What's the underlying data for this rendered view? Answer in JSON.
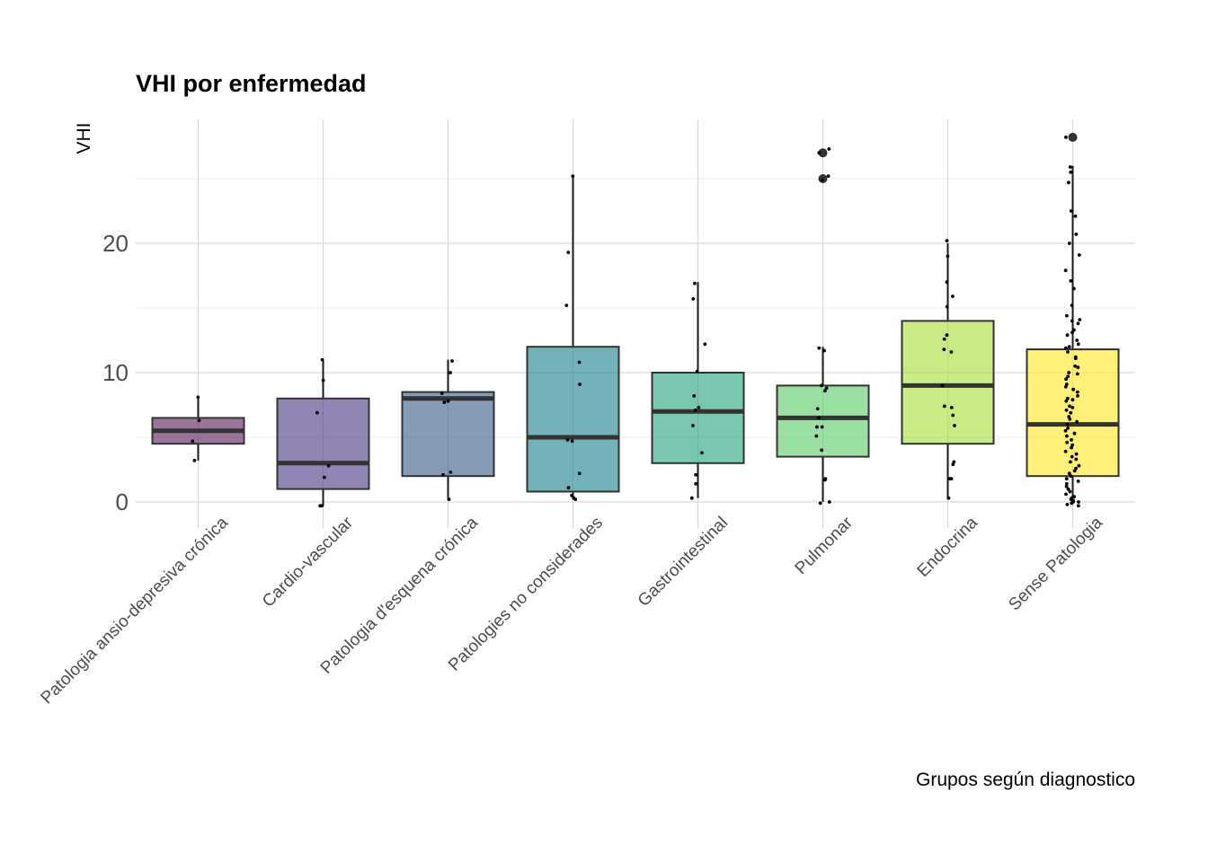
{
  "chart_data": {
    "type": "boxplot",
    "title": "VHI por enfermedad",
    "xlabel": "Grupos según diagnostico",
    "ylabel": "VHI",
    "ylim": [
      -1.9,
      29.5
    ],
    "yticks": [
      0,
      10,
      20
    ],
    "grid": true,
    "legend": "none",
    "categories": [
      "Patologia ansio-depresiva crónica",
      "Cardio-vascular",
      "Patologia d'esquena crónica",
      "Patologies no considerades",
      "Gastrointestinal",
      "Pulmonar",
      "Endocrina",
      "Sense Patologia"
    ],
    "colors": [
      "#5b1f5e",
      "#4f3985",
      "#3d5d8e",
      "#21818e",
      "#27a381",
      "#5fcb69",
      "#a8df3a",
      "#fde725"
    ],
    "boxes": [
      {
        "q1": 4.5,
        "median": 5.5,
        "q3": 6.5,
        "whisker_low": 3.2,
        "whisker_high": 8,
        "outliers": []
      },
      {
        "q1": 1,
        "median": 3,
        "q3": 8,
        "whisker_low": -0.3,
        "whisker_high": 11,
        "outliers": []
      },
      {
        "q1": 2,
        "median": 8,
        "q3": 8.5,
        "whisker_low": 0.2,
        "whisker_high": 11,
        "outliers": []
      },
      {
        "q1": 0.8,
        "median": 5,
        "q3": 12,
        "whisker_low": 0.2,
        "whisker_high": 25.2,
        "outliers": []
      },
      {
        "q1": 3,
        "median": 7,
        "q3": 10,
        "whisker_low": 0.3,
        "whisker_high": 17,
        "outliers": []
      },
      {
        "q1": 3.5,
        "median": 6.5,
        "q3": 9,
        "whisker_low": 0,
        "whisker_high": 12,
        "outliers": [
          25,
          27
        ]
      },
      {
        "q1": 4.5,
        "median": 9,
        "q3": 14,
        "whisker_low": 0.3,
        "whisker_high": 20,
        "outliers": []
      },
      {
        "q1": 2,
        "median": 6,
        "q3": 11.8,
        "whisker_low": 0,
        "whisker_high": 26,
        "outliers": [
          28.2
        ]
      }
    ],
    "points": [
      [
        8.1,
        6.3,
        4.7,
        3.2
      ],
      [
        11,
        9.4,
        6.9,
        2.8,
        1.9,
        -0.3,
        -0.3
      ],
      [
        10.9,
        10,
        8.4,
        7.8,
        7.7,
        2.3,
        2.1,
        0.2
      ],
      [
        25.2,
        19.3,
        15.2,
        10.8,
        9.1,
        4.8,
        4.7,
        2.2,
        1.1,
        0.5,
        0.3,
        0.2
      ],
      [
        16.9,
        15.7,
        12.2,
        10.1,
        8.2,
        7.3,
        7.1,
        5.9,
        3.8,
        2.1,
        1.4,
        0.3
      ],
      [
        27.3,
        27,
        25.2,
        24.9,
        11.9,
        11.7,
        9,
        8.8,
        8.6,
        7.2,
        6.5,
        5.8,
        5.8,
        5.1,
        4,
        1.8,
        1.7,
        0,
        -0.1
      ],
      [
        20.2,
        19,
        17,
        15.9,
        15.1,
        12.9,
        12.6,
        11.8,
        11.6,
        9,
        7.4,
        7.3,
        6.7,
        5.9,
        3.1,
        2.9,
        1.8,
        1.8,
        0.3
      ],
      [
        28.2,
        25.9,
        25.5,
        24.7,
        22.5,
        22.1,
        20.7,
        20,
        19.1,
        17.9,
        17.1,
        16.5,
        15.2,
        14.4,
        14.1,
        14,
        13.8,
        13.3,
        13.1,
        12.9,
        12.5,
        12.2,
        12,
        11.9,
        11.6,
        11.2,
        11.1,
        10.5,
        10.4,
        10,
        9.9,
        9.7,
        9.5,
        9.1,
        8.9,
        8.7,
        8.5,
        8.2,
        8,
        7.9,
        7.8,
        7.4,
        7.3,
        7.1,
        6.9,
        6.6,
        6.4,
        6.2,
        6,
        5.7,
        5.5,
        5.3,
        5.1,
        4.8,
        4.6,
        4.4,
        4.2,
        3.9,
        3.7,
        3.5,
        3.3,
        3.1,
        2.8,
        2.6,
        2.4,
        2.2,
        2,
        1.8,
        1.6,
        1.4,
        1.2,
        1,
        0.8,
        0.6,
        0.4,
        0.3,
        0.2,
        0.1,
        0,
        0,
        -0.1,
        -0.2,
        -0.3
      ]
    ]
  }
}
